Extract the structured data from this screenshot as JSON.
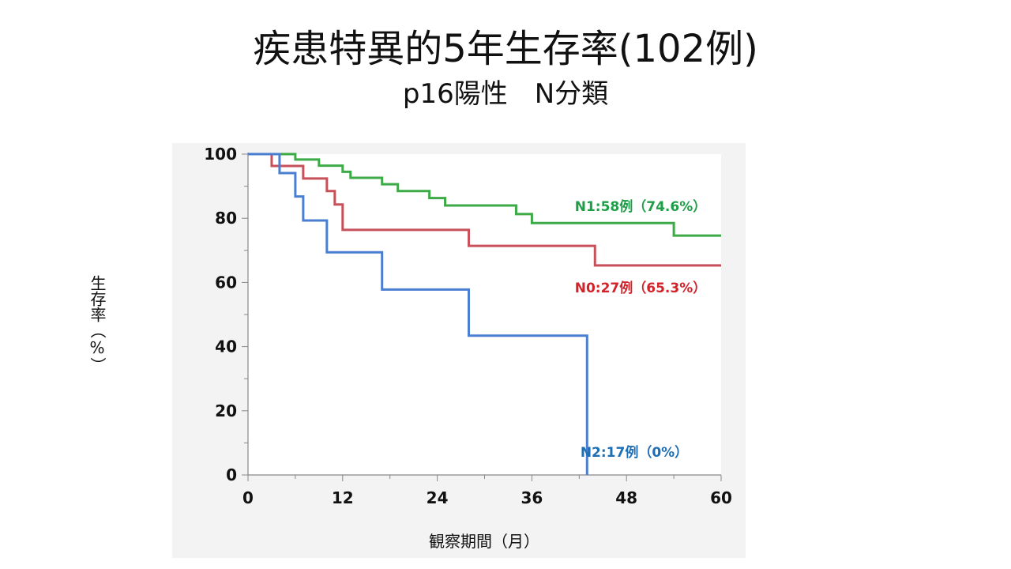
{
  "title": "疾患特異的5年生存率(102例)",
  "subtitle": "p16陽性　N分類",
  "chart_data": {
    "type": "line",
    "step": true,
    "xlabel": "観察期間（月）",
    "ylabel": "生存率（%）",
    "xlim": [
      0,
      60
    ],
    "ylim": [
      0,
      100
    ],
    "xticks": [
      0,
      12,
      24,
      36,
      48,
      60
    ],
    "yticks": [
      0,
      20,
      40,
      60,
      80,
      100
    ],
    "grid": false,
    "series": [
      {
        "name": "N1",
        "label": "N1:58例（74.6%）",
        "color": "#3caa46",
        "label_color": "#1e9e46",
        "x": [
          0,
          6,
          9,
          12,
          13,
          17,
          19,
          23,
          25,
          34,
          36,
          54,
          60
        ],
        "y": [
          100,
          98.3,
          96.4,
          94.5,
          92.6,
          90.6,
          88.5,
          86.3,
          84.0,
          81.3,
          78.5,
          74.6,
          74.6
        ]
      },
      {
        "name": "N0",
        "label": "N0:27例（65.3%）",
        "color": "#c8505a",
        "label_color": "#d2232a",
        "x": [
          0,
          3,
          7,
          10,
          11,
          12,
          28,
          44,
          60
        ],
        "y": [
          100,
          96.3,
          92.4,
          88.5,
          84.3,
          76.4,
          71.4,
          65.3,
          65.3
        ]
      },
      {
        "name": "N2",
        "label": "N2:17例（0%）",
        "color": "#4a7ed0",
        "label_color": "#1e6eb4",
        "x": [
          0,
          4,
          6,
          7,
          10,
          17,
          28,
          43
        ],
        "y": [
          100,
          94.1,
          86.8,
          79.3,
          69.4,
          57.8,
          43.4,
          0
        ]
      }
    ]
  }
}
